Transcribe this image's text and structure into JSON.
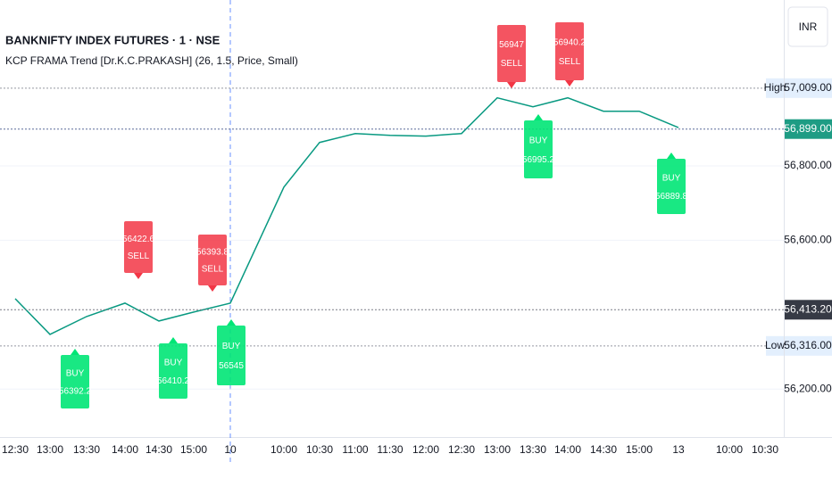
{
  "chart_data": {
    "type": "line",
    "title": "BANKNIFTY INDEX FUTURES · 1 · NSE",
    "subtitle": "KCP FRAMA Trend [Dr.K.C.PRAKASH] (26, 1.5, Price, Small)",
    "currency": "INR",
    "categories": [
      "12:30",
      "13:00",
      "13:30",
      "14:00",
      "14:30",
      "15:00",
      "10",
      "10:00",
      "10:30",
      "11:00",
      "11:30",
      "12:00",
      "12:30",
      "13:00",
      "13:30",
      "14:00",
      "14:30",
      "15:00",
      "13",
      "10:00",
      "10:30"
    ],
    "values": [
      56443,
      56347,
      56395,
      56431,
      56383,
      56407,
      56431,
      56743,
      56863,
      56887,
      56882,
      56880,
      56887,
      56983,
      56959,
      56983,
      56947,
      56947,
      56903,
      null,
      null
    ],
    "color": "#089981",
    "ylim": [
      56071,
      57246
    ],
    "yticks": [
      {
        "value": 56200,
        "label": "56,200.00"
      },
      {
        "value": 56600,
        "label": "56,600.00"
      },
      {
        "value": 56800,
        "label": "56,800.00"
      }
    ],
    "price_levels": [
      {
        "name": "High",
        "value": 57009,
        "label": "57,009.00"
      },
      {
        "value": 56899,
        "label": "56,899.00"
      },
      {
        "value": 56413.2,
        "label": "56,413.20"
      },
      {
        "name": "Low",
        "value": 56316,
        "label": "56,316.00"
      }
    ],
    "signals": [
      {
        "signal": "BUY",
        "price": 56392.2
      },
      {
        "signal": "SELL",
        "price": 56422.6
      },
      {
        "signal": "BUY",
        "price": 56410.2
      },
      {
        "signal": "SELL",
        "price": 56393.8
      },
      {
        "signal": "BUY",
        "price": 56545
      },
      {
        "signal": "SELL",
        "price": 56947
      },
      {
        "signal": "BUY",
        "price": 56995.2
      },
      {
        "signal": "SELL",
        "price": 56940.2
      },
      {
        "signal": "BUY",
        "price": 56889.8
      }
    ]
  }
}
